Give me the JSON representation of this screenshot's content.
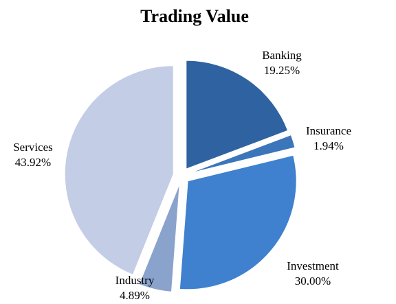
{
  "chart_data": {
    "type": "pie",
    "title": "Trading Value",
    "categories": [
      "Banking",
      "Insurance",
      "Investment",
      "Industry",
      "Services"
    ],
    "values": [
      19.25,
      1.94,
      30.0,
      4.89,
      43.92
    ],
    "value_labels": [
      "19.25%",
      "1.94%",
      "30.00%",
      "4.89%",
      "43.92%"
    ],
    "colors": [
      "#2f62a0",
      "#3b76bb",
      "#3f80cf",
      "#8aa3cc",
      "#c3cde6"
    ]
  }
}
